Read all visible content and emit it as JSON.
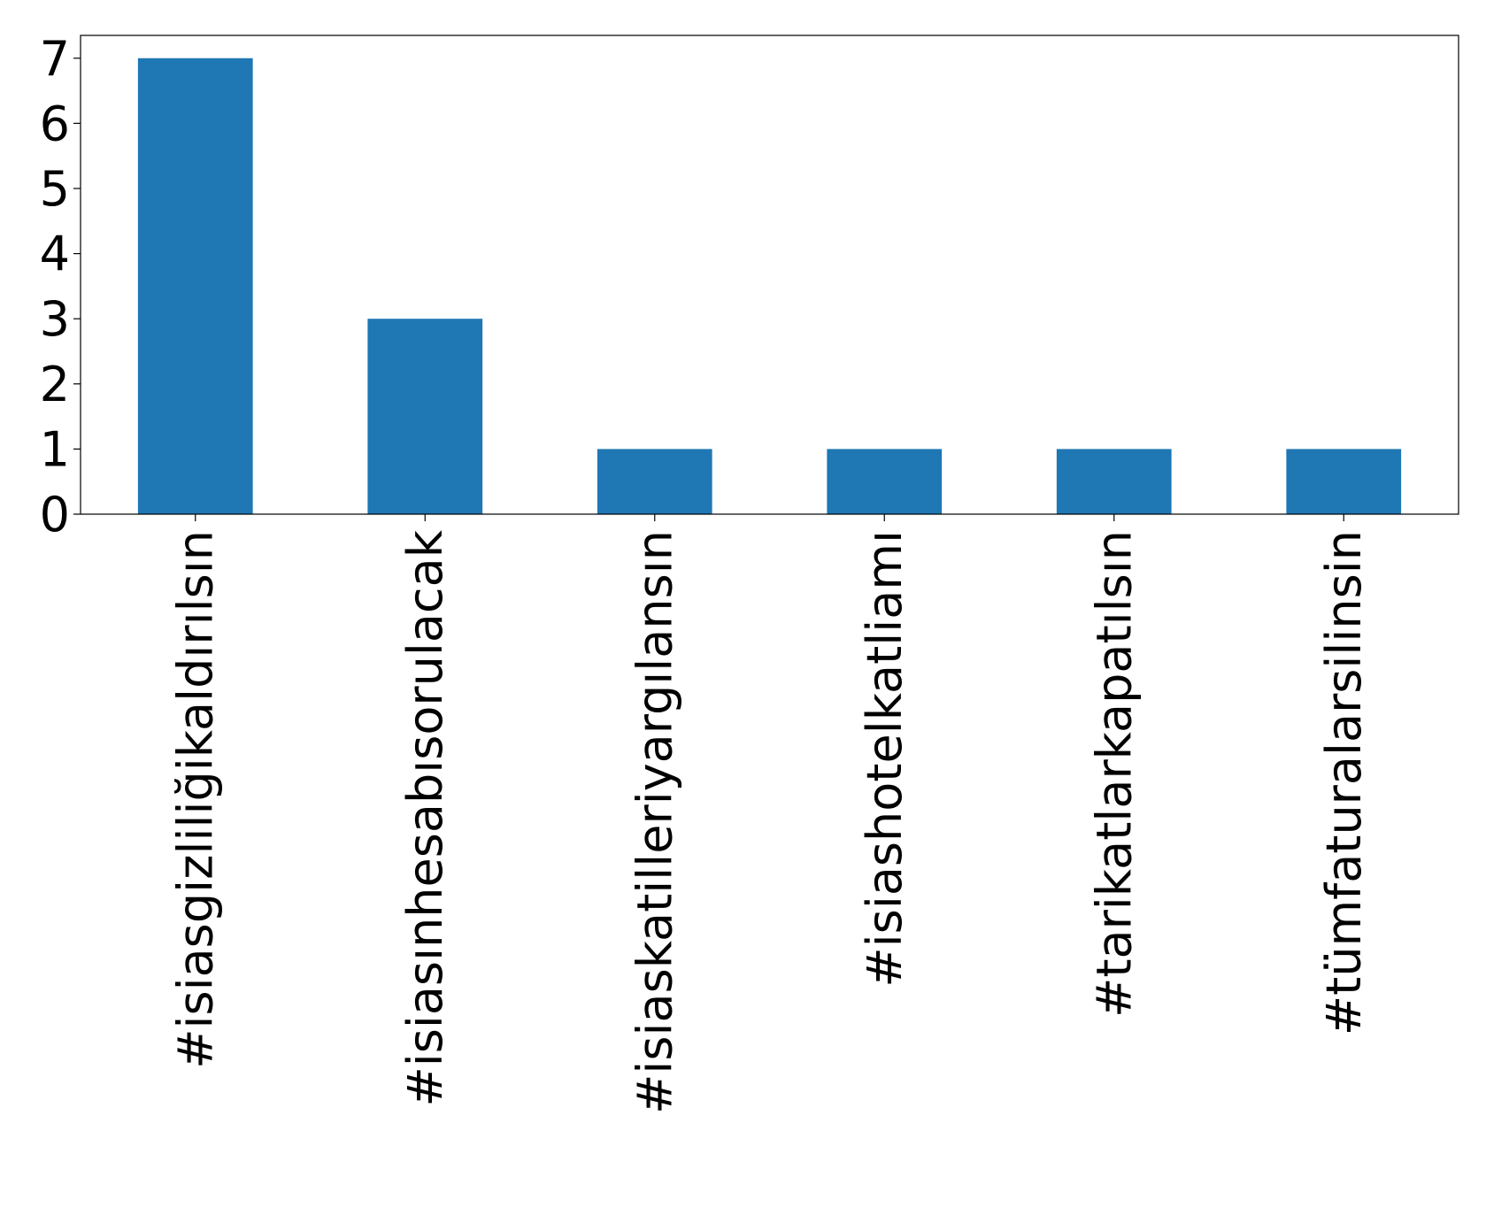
{
  "chart_data": {
    "type": "bar",
    "categories": [
      "#isiasgizliliğikaldırılsın",
      "#isiasınhesabısorulacak",
      "#isiaskatilleriyargılansın",
      "#isiashotelkatliamı",
      "#tarikatlarkapatılsın",
      "#tümfaturalarsilinsin"
    ],
    "values": [
      7,
      3,
      1,
      1,
      1,
      1
    ],
    "ylim": [
      0,
      7.35
    ],
    "yticks": [
      0,
      1,
      2,
      3,
      4,
      5,
      6,
      7
    ],
    "title": "",
    "xlabel": "",
    "ylabel": "",
    "bar_color": "#1f77b4",
    "grid": false,
    "legend": "none"
  }
}
